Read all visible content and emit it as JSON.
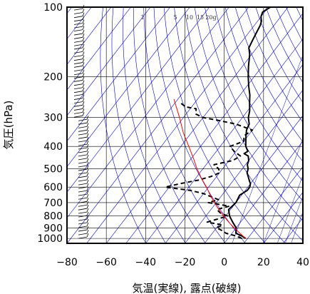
{
  "chart_data": {
    "type": "line",
    "subtype": "skew-t log-p thermodynamic diagram",
    "xlabel": "気温(実線), 露点(破線)",
    "ylabel": "気圧(hPa)",
    "xlim": [
      -80,
      40
    ],
    "ylim": [
      1050,
      100
    ],
    "y_scale": "log",
    "grid": true,
    "x_ticks": [
      -80,
      -60,
      -40,
      -20,
      0,
      20,
      40
    ],
    "y_ticks": [
      100,
      200,
      300,
      400,
      500,
      600,
      700,
      800,
      900,
      1000
    ],
    "mixing_ratio_labels": [
      "1",
      "5",
      "10",
      "15",
      "20g"
    ],
    "colors": {
      "temperature": "#000000",
      "dewpoint": "#000000",
      "parcel": "#ff0000",
      "isotherm": "#0000cc",
      "adiabat": "#0000cc",
      "grid": "#000000"
    },
    "series": [
      {
        "name": "",
        "role": "temperature",
        "style": "solid",
        "points": [
          [
            1000,
            9
          ],
          [
            975,
            6
          ],
          [
            950,
            2
          ],
          [
            900,
            0
          ],
          [
            850,
            -4
          ],
          [
            800,
            -8
          ],
          [
            750,
            -11
          ],
          [
            700,
            -10
          ],
          [
            650,
            -11
          ],
          [
            620,
            -9
          ],
          [
            600,
            -9
          ],
          [
            580,
            -10
          ],
          [
            560,
            -12
          ],
          [
            540,
            -14
          ],
          [
            520,
            -16
          ],
          [
            500,
            -17
          ],
          [
            480,
            -19
          ],
          [
            460,
            -20
          ],
          [
            440,
            -22
          ],
          [
            430,
            -25
          ],
          [
            420,
            -24
          ],
          [
            400,
            -27
          ],
          [
            380,
            -29
          ],
          [
            360,
            -31
          ],
          [
            340,
            -33
          ],
          [
            320,
            -34
          ],
          [
            300,
            -37
          ],
          [
            280,
            -39
          ],
          [
            260,
            -42
          ],
          [
            240,
            -45
          ],
          [
            220,
            -49
          ],
          [
            200,
            -53
          ],
          [
            180,
            -57
          ],
          [
            160,
            -61
          ],
          [
            150,
            -64
          ],
          [
            140,
            -65
          ],
          [
            130,
            -66
          ],
          [
            120,
            -67
          ],
          [
            115,
            -68
          ],
          [
            110,
            -70
          ],
          [
            105,
            -71
          ],
          [
            100,
            -69
          ]
        ]
      },
      {
        "name": "",
        "role": "dewpoint",
        "style": "dashed",
        "points": [
          [
            1000,
            7
          ],
          [
            975,
            3
          ],
          [
            950,
            -3
          ],
          [
            925,
            -6
          ],
          [
            900,
            -10
          ],
          [
            875,
            -8
          ],
          [
            850,
            -17
          ],
          [
            800,
            -9
          ],
          [
            775,
            -14
          ],
          [
            750,
            -17
          ],
          [
            725,
            -12
          ],
          [
            700,
            -24
          ],
          [
            680,
            -20
          ],
          [
            660,
            -25
          ],
          [
            640,
            -30
          ],
          [
            620,
            -38
          ],
          [
            600,
            -52
          ],
          [
            580,
            -46
          ],
          [
            560,
            -38
          ],
          [
            540,
            -33
          ],
          [
            520,
            -30
          ],
          [
            500,
            -32
          ],
          [
            480,
            -36
          ],
          [
            460,
            -28
          ],
          [
            440,
            -26
          ],
          [
            420,
            -31
          ],
          [
            400,
            -35
          ],
          [
            380,
            -30
          ],
          [
            360,
            -32
          ],
          [
            340,
            -30
          ],
          [
            320,
            -41
          ],
          [
            310,
            -50
          ],
          [
            300,
            -60
          ],
          [
            290,
            -65
          ],
          [
            275,
            -67
          ],
          [
            270,
            -73
          ],
          [
            260,
            -77
          ]
        ]
      },
      {
        "name": "",
        "role": "parcel",
        "style": "solid",
        "points": [
          [
            1000,
            9
          ],
          [
            950,
            4
          ],
          [
            900,
            -1
          ],
          [
            850,
            -6
          ],
          [
            800,
            -11
          ],
          [
            750,
            -16
          ],
          [
            700,
            -21
          ],
          [
            650,
            -26
          ],
          [
            600,
            -31
          ],
          [
            550,
            -37
          ],
          [
            500,
            -43
          ],
          [
            450,
            -49
          ],
          [
            400,
            -56
          ],
          [
            350,
            -64
          ],
          [
            300,
            -72
          ],
          [
            250,
            -82
          ]
        ]
      }
    ],
    "wind_barbs": true
  }
}
